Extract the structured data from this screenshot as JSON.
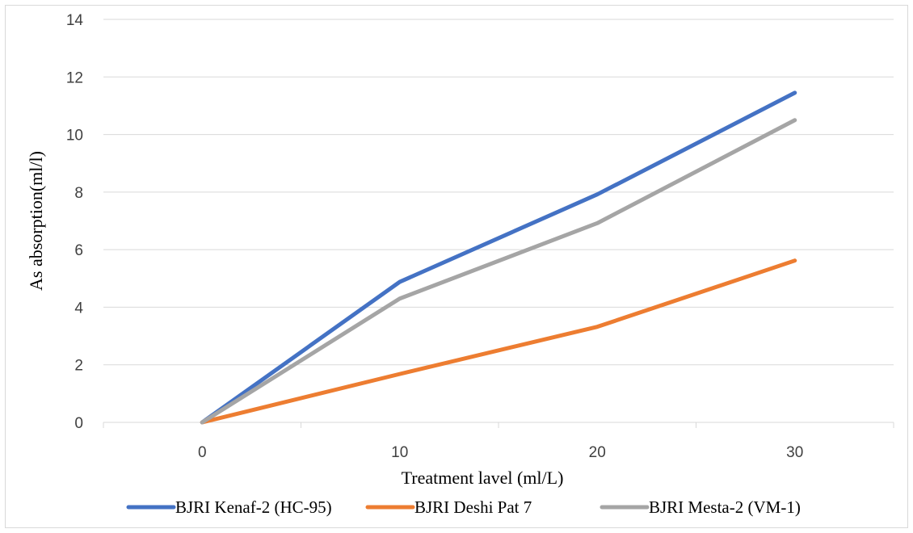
{
  "chart_data": {
    "type": "line",
    "title": "",
    "xlabel": "Treatment lavel (ml/L)",
    "ylabel": "As absorption(ml/l)",
    "categories": [
      "0",
      "10",
      "20",
      "30"
    ],
    "x": [
      0,
      10,
      20,
      30
    ],
    "ylim": [
      0,
      14
    ],
    "yticks": [
      0,
      2,
      4,
      6,
      8,
      10,
      12,
      14
    ],
    "grid": true,
    "legend_position": "bottom",
    "series": [
      {
        "name": "BJRI Kenaf-2 (HC-95)",
        "color": "#4472c4",
        "values": [
          0,
          4.88,
          7.92,
          11.45
        ]
      },
      {
        "name": "BJRI Deshi Pat 7",
        "color": "#ed7d31",
        "values": [
          0,
          1.68,
          3.32,
          5.62
        ]
      },
      {
        "name": "BJRI Mesta-2 (VM-1)",
        "color": "#a5a5a5",
        "values": [
          0,
          4.3,
          6.92,
          10.5
        ]
      }
    ]
  }
}
